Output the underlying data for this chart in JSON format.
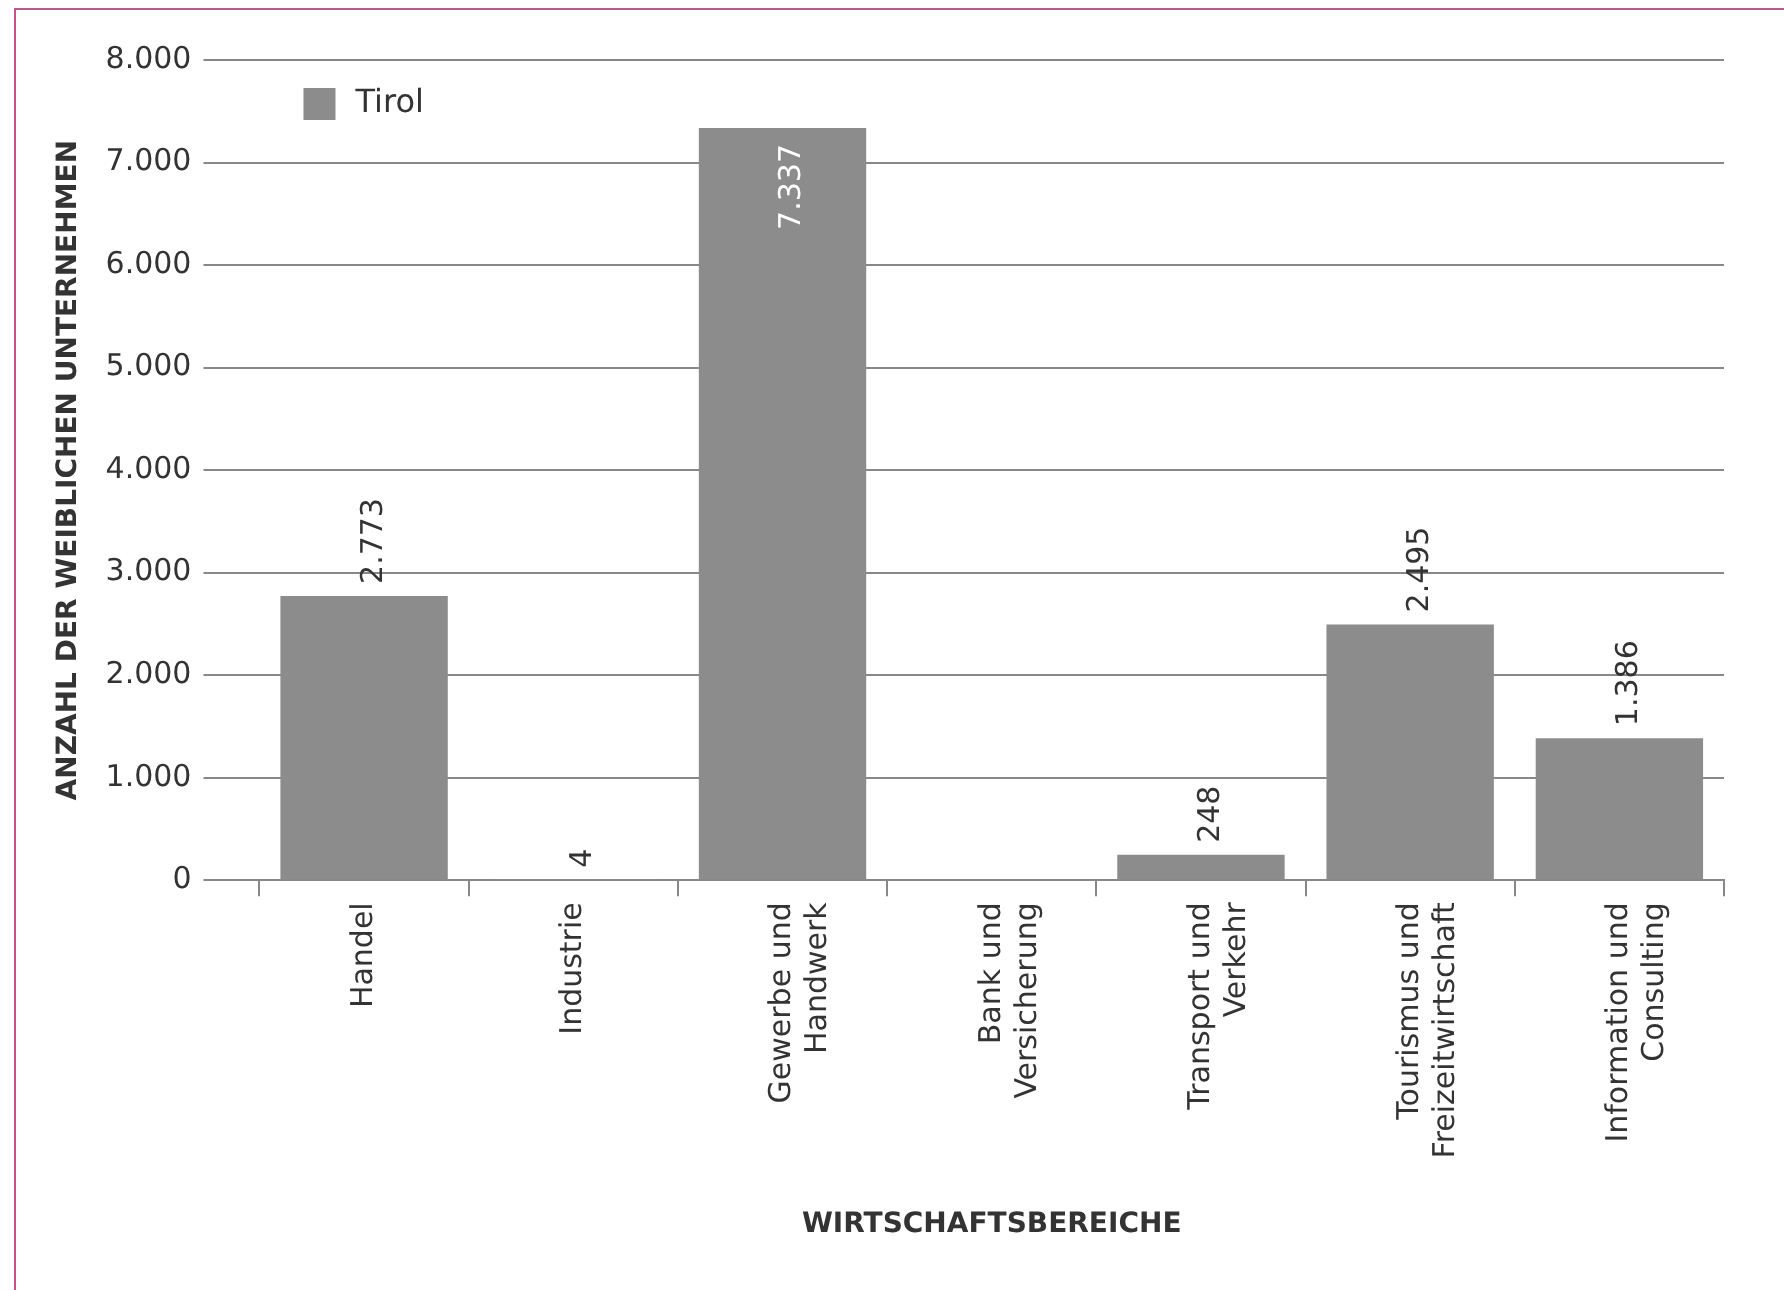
{
  "chart_data": {
    "type": "bar",
    "xlabel": "WIRTSCHAFTSBEREICHE",
    "ylabel": "ANZAHL DER WEIBLICHEN UNTERNEHMEN",
    "categories": [
      "Handel",
      "Industrie",
      "Gewerbe und Handwerk",
      "Bank und Versicherung",
      "Transport und Verkehr",
      "Tourismus und Freizeitwirtschaft",
      "Information und Consulting"
    ],
    "series": [
      {
        "name": "Tirol",
        "color": "#8c8c8c",
        "values": [
          2773,
          4,
          7337,
          0,
          248,
          2495,
          1386
        ],
        "value_labels": [
          "2.773",
          "4",
          "7.337",
          null,
          "248",
          "2.495",
          "1.386"
        ]
      }
    ],
    "ylim": [
      0,
      8000
    ],
    "yticks": [
      {
        "value": 0,
        "label": "0"
      },
      {
        "value": 1000,
        "label": "1.000"
      },
      {
        "value": 2000,
        "label": "2.000"
      },
      {
        "value": 3000,
        "label": "3.000"
      },
      {
        "value": 4000,
        "label": "4.000"
      },
      {
        "value": 5000,
        "label": "5.000"
      },
      {
        "value": 6000,
        "label": "6.000"
      },
      {
        "value": 7000,
        "label": "7.000"
      },
      {
        "value": 8000,
        "label": "8.000"
      }
    ],
    "grid": "y",
    "legend": "top left"
  }
}
